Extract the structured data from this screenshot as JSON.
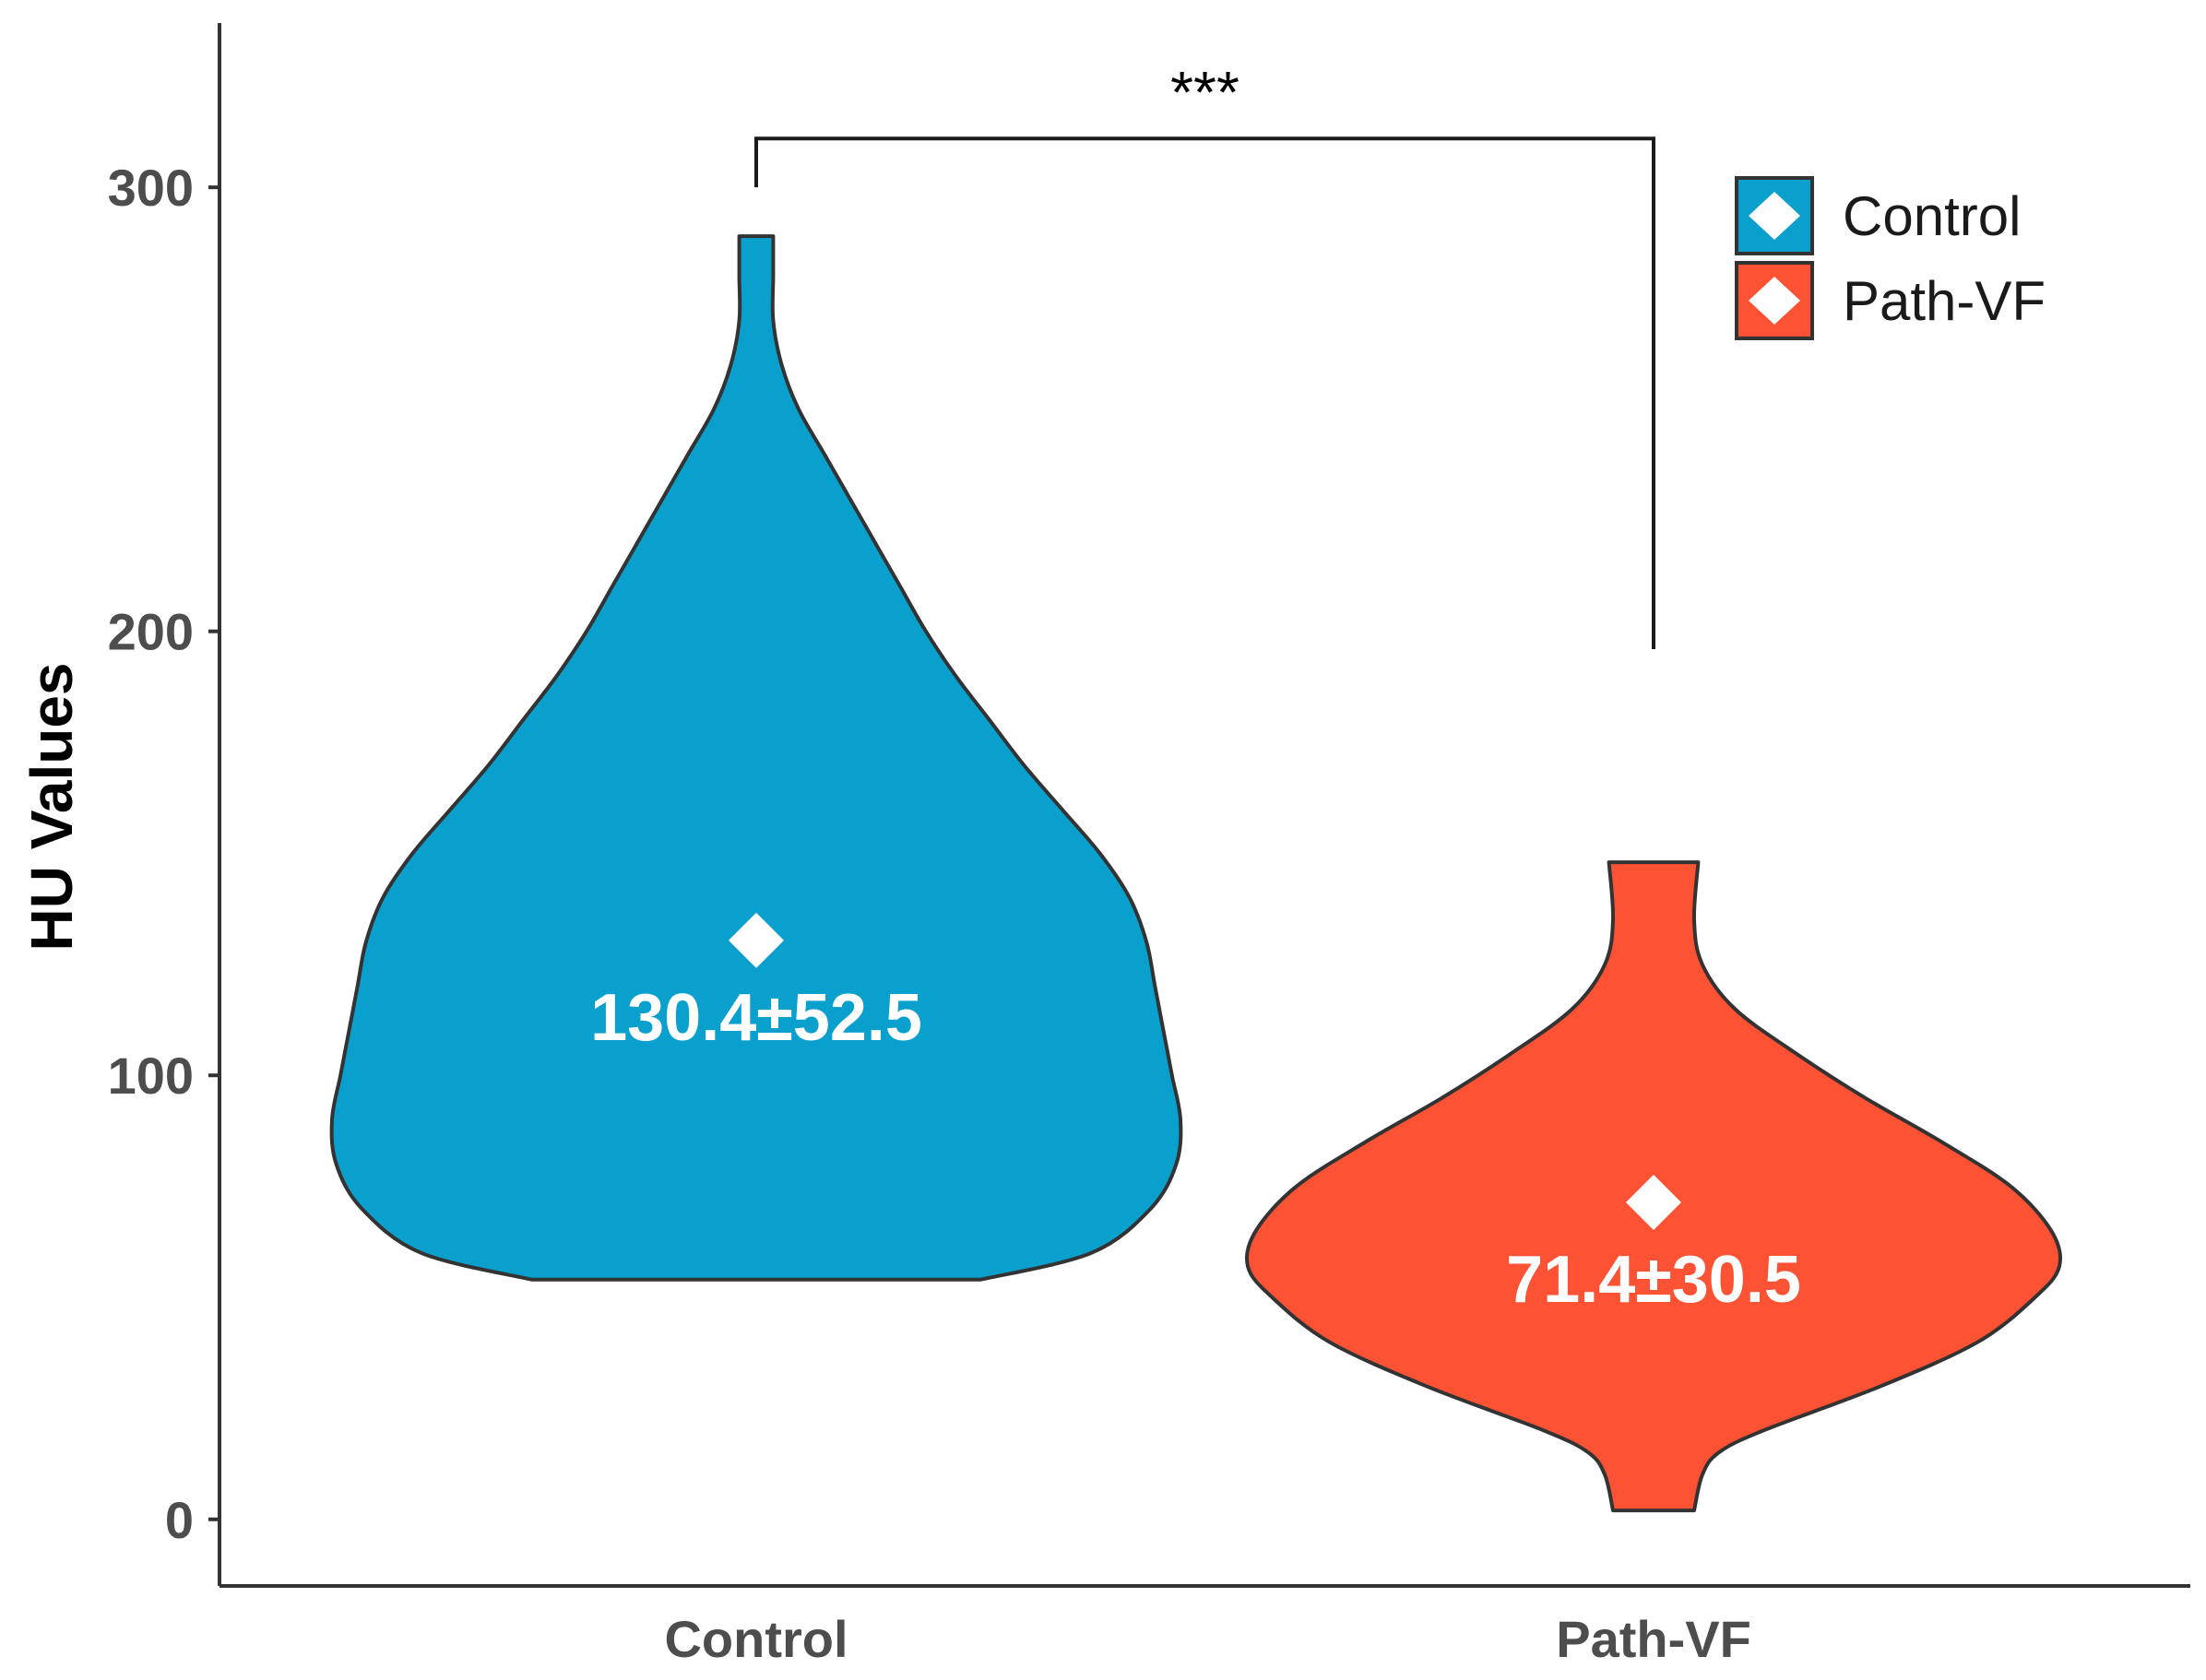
{
  "chart_data": {
    "type": "violin",
    "ylabel": "HU Values",
    "xlabel": "",
    "ylim": [
      -15,
      337
    ],
    "yticks": [
      0,
      100,
      200,
      300
    ],
    "categories": [
      "Control",
      "Path-VF"
    ],
    "series": [
      {
        "name": "Control",
        "color": "#0aa0ce",
        "mean": 130.4,
        "label": "130.4±52.5",
        "min": 54,
        "max": 289,
        "density": [
          [
            54,
            0.53
          ],
          [
            60,
            0.79
          ],
          [
            70,
            0.93
          ],
          [
            80,
            0.99
          ],
          [
            90,
            1.0
          ],
          [
            100,
            0.98
          ],
          [
            110,
            0.96
          ],
          [
            120,
            0.94
          ],
          [
            130,
            0.92
          ],
          [
            140,
            0.88
          ],
          [
            150,
            0.81
          ],
          [
            160,
            0.72
          ],
          [
            170,
            0.63
          ],
          [
            180,
            0.55
          ],
          [
            190,
            0.47
          ],
          [
            200,
            0.4
          ],
          [
            210,
            0.34
          ],
          [
            220,
            0.28
          ],
          [
            230,
            0.22
          ],
          [
            240,
            0.16
          ],
          [
            250,
            0.1
          ],
          [
            260,
            0.06
          ],
          [
            270,
            0.04
          ],
          [
            280,
            0.04
          ],
          [
            289,
            0.04
          ]
        ]
      },
      {
        "name": "Path-VF",
        "color": "#fe5235",
        "mean": 71.4,
        "label": "71.4±30.5",
        "min": 2,
        "max": 148,
        "density": [
          [
            2,
            0.1
          ],
          [
            10,
            0.12
          ],
          [
            15,
            0.16
          ],
          [
            20,
            0.27
          ],
          [
            30,
            0.56
          ],
          [
            40,
            0.8
          ],
          [
            50,
            0.94
          ],
          [
            57,
            1.0
          ],
          [
            65,
            0.98
          ],
          [
            75,
            0.88
          ],
          [
            85,
            0.71
          ],
          [
            95,
            0.52
          ],
          [
            105,
            0.35
          ],
          [
            115,
            0.2
          ],
          [
            125,
            0.12
          ],
          [
            135,
            0.1
          ],
          [
            148,
            0.11
          ]
        ]
      }
    ],
    "significance": {
      "label": "***",
      "from": "Control",
      "to": "Path-VF",
      "y": 311,
      "left_tip": 300,
      "right_tip": 196
    },
    "legend": {
      "position": "top-right",
      "entries": [
        "Control",
        "Path-VF"
      ]
    },
    "grid": false
  }
}
